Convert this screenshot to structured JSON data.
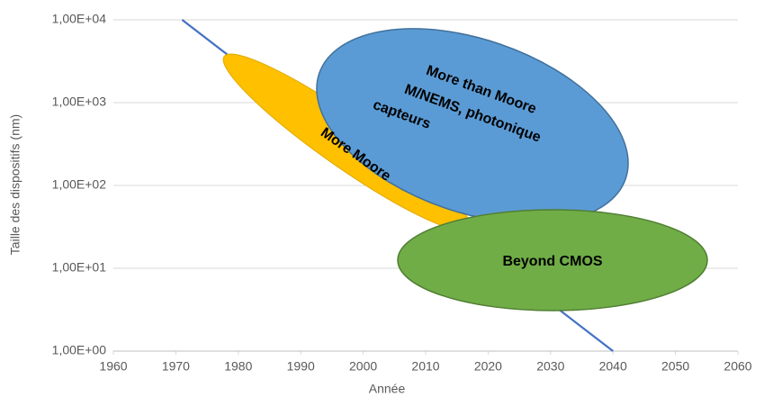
{
  "chart_data": {
    "type": "line",
    "x": [
      1971,
      2040
    ],
    "series": [
      {
        "name": "Taille",
        "color": "#4472c4",
        "values": [
          10000,
          1
        ]
      }
    ],
    "xlim": [
      1960,
      2060
    ],
    "xticks": [
      1960,
      1970,
      1980,
      1990,
      2000,
      2010,
      2020,
      2030,
      2040,
      2050,
      2060
    ],
    "ylim": [
      1,
      10000
    ],
    "log_y": true,
    "grid": true,
    "yticks": [
      {
        "value": 1,
        "label": "1,00E+00"
      },
      {
        "value": 10,
        "label": "1,00E+01"
      },
      {
        "value": 100,
        "label": "1,00E+02"
      },
      {
        "value": 1000,
        "label": "1,00E+03"
      },
      {
        "value": 10000,
        "label": "1,00E+04"
      }
    ],
    "xlabel": "Année",
    "ylabel": "Taille des dispositifs   (nm)",
    "annotations": [
      [
        "More Moore"
      ],
      [
        "More than Moore",
        "M/NEMS, photonique",
        "capteurs"
      ],
      [
        "Beyond CMOS"
      ]
    ]
  }
}
